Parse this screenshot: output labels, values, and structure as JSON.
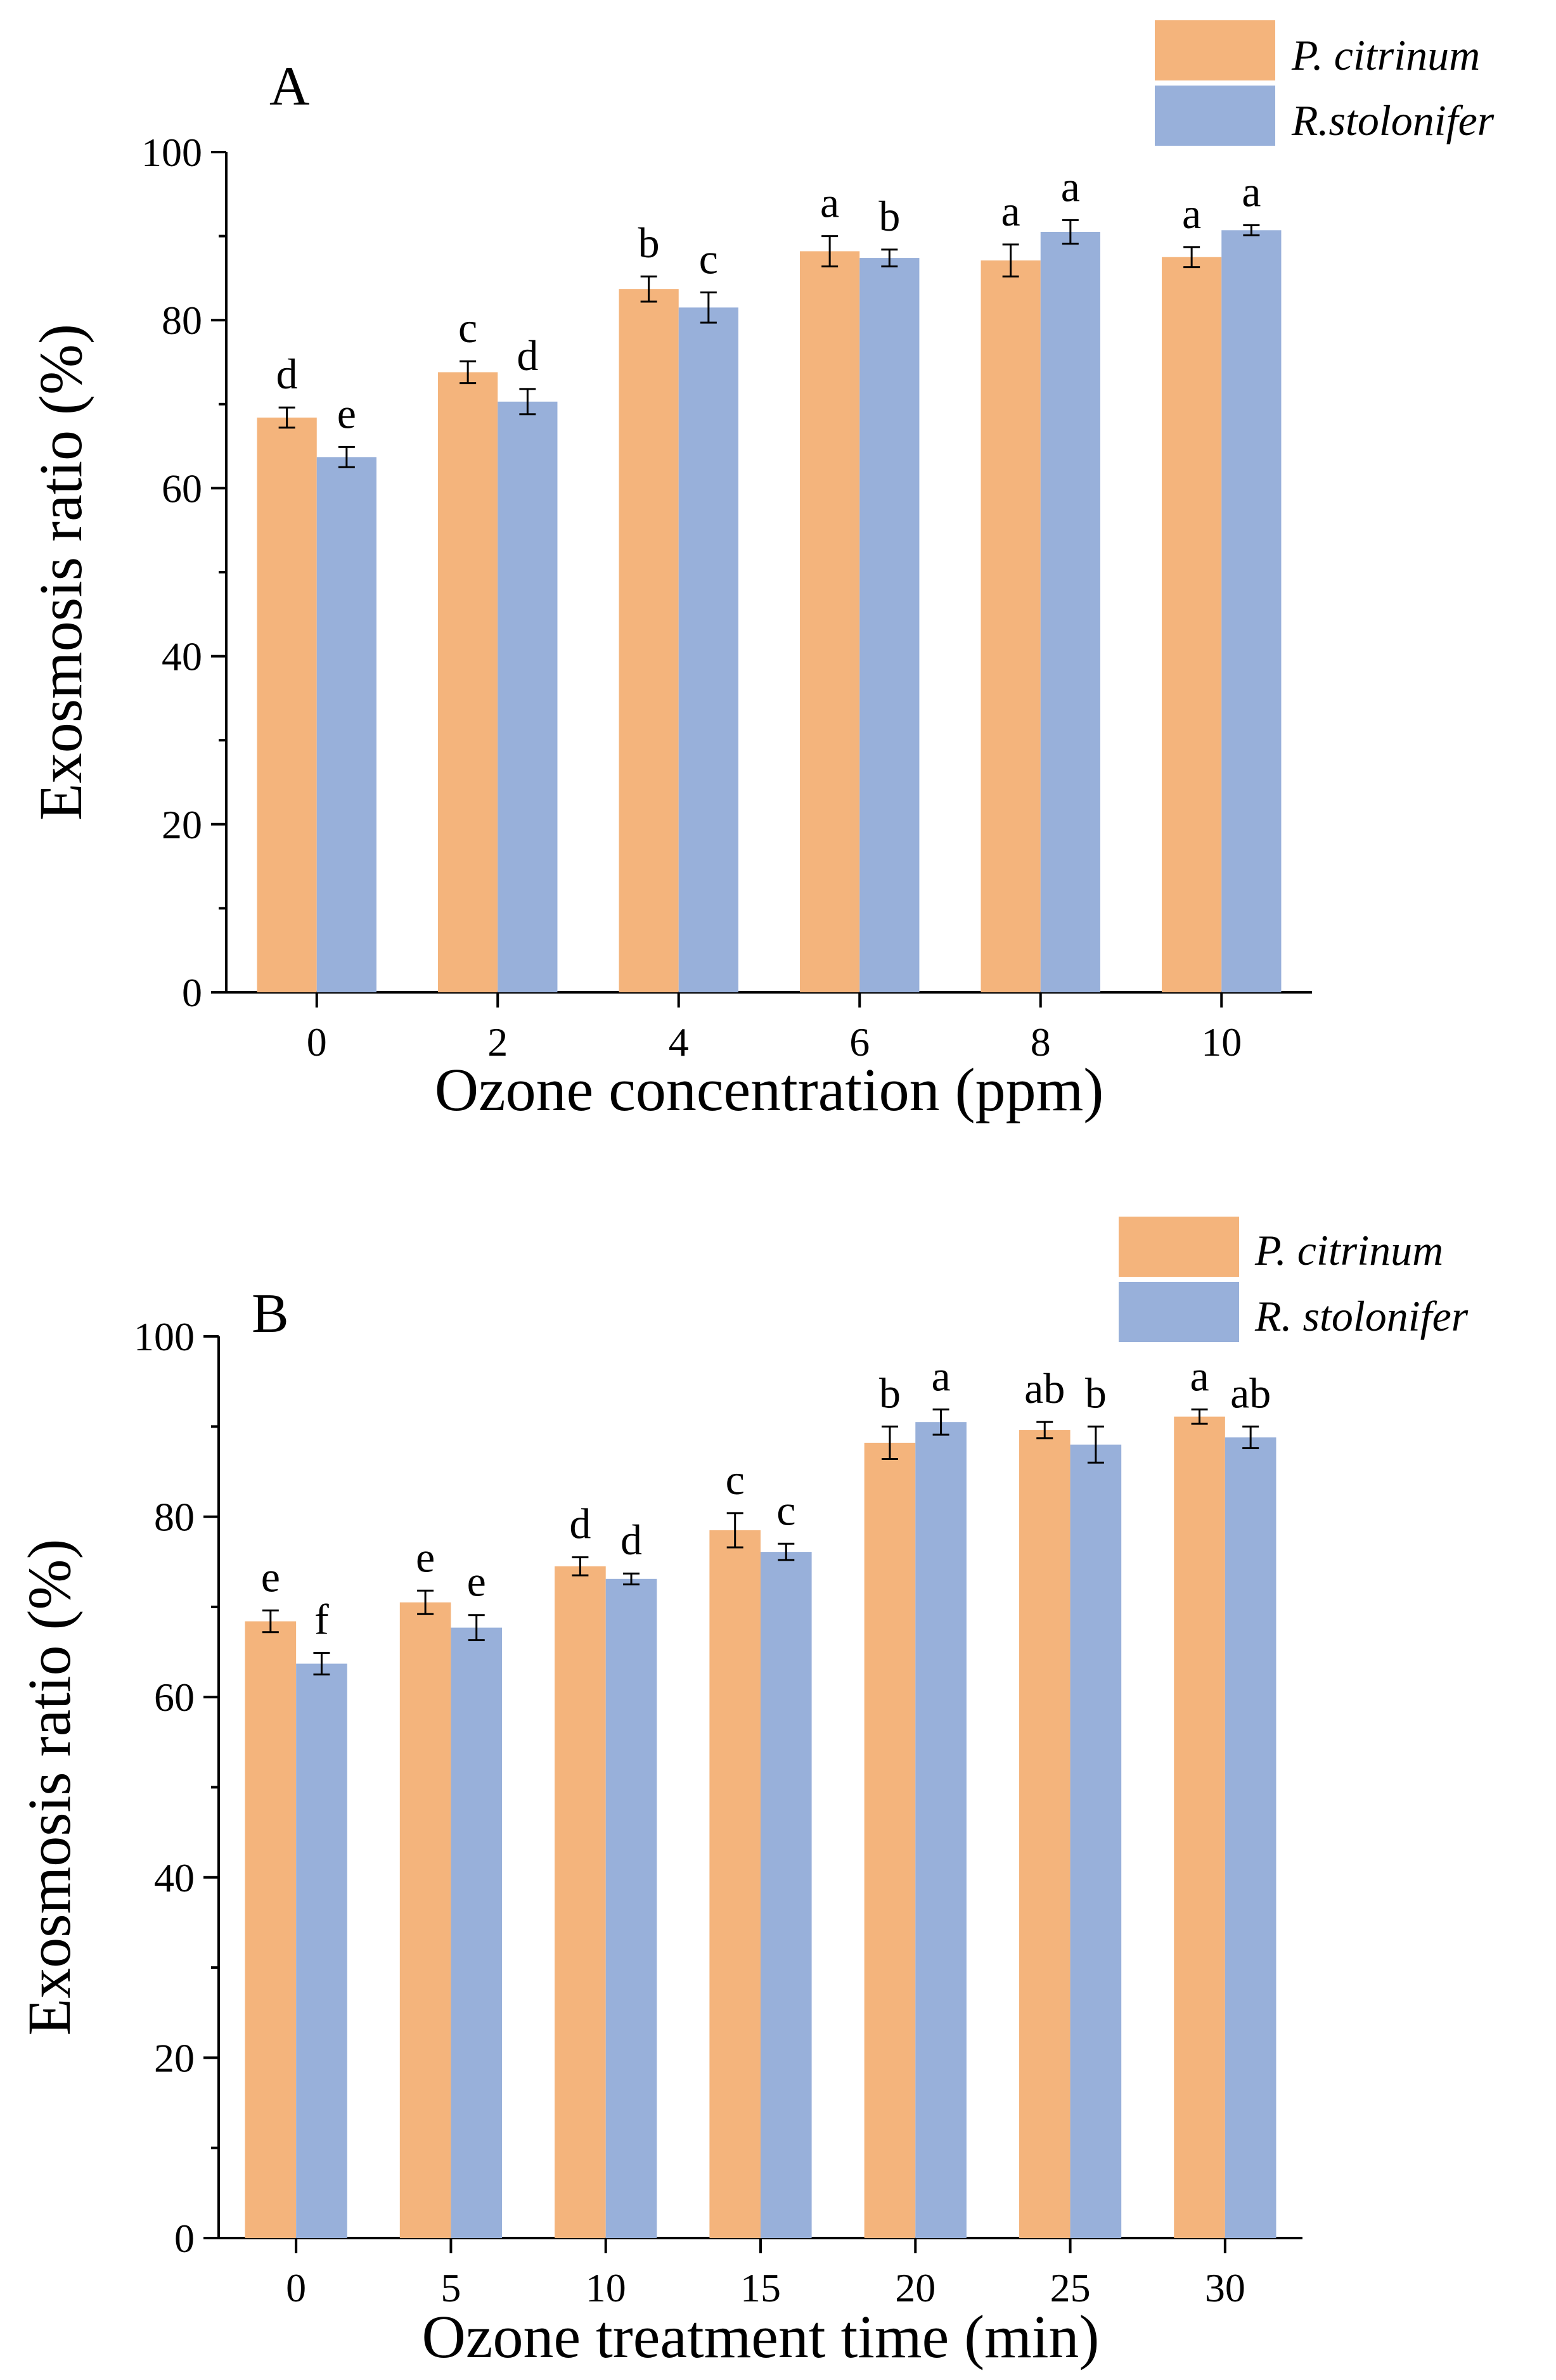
{
  "chart_data": [
    {
      "type": "bar",
      "panel": "A",
      "title": "",
      "xlabel": "Ozone concentration (ppm)",
      "ylabel": "Exosmosis ratio (%)",
      "ylim": [
        0,
        100
      ],
      "yticks": [
        "0",
        "20",
        "40",
        "60",
        "80",
        "100"
      ],
      "categories": [
        "0",
        "2",
        "4",
        "6",
        "8",
        "10"
      ],
      "legend_position": "top-right",
      "series": [
        {
          "name": "P. citrinum",
          "color": "#F4B47C",
          "values": [
            68.4,
            73.8,
            83.7,
            88.2,
            87.1,
            87.5
          ],
          "errors": [
            1.2,
            1.3,
            1.5,
            1.8,
            1.9,
            1.2
          ],
          "labels": [
            "d",
            "c",
            "b",
            "a",
            "a",
            "a"
          ]
        },
        {
          "name": "R.stolonifer",
          "color": "#98B0DA",
          "values": [
            63.7,
            70.3,
            81.5,
            87.4,
            90.5,
            90.7
          ],
          "errors": [
            1.2,
            1.5,
            1.8,
            1.0,
            1.4,
            0.6
          ],
          "labels": [
            "e",
            "d",
            "c",
            "b",
            "a",
            "a"
          ]
        }
      ]
    },
    {
      "type": "bar",
      "panel": "B",
      "title": "",
      "xlabel": "Ozone treatment time (min)",
      "ylabel": "Exosmosis ratio (%)",
      "ylim": [
        0,
        100
      ],
      "yticks": [
        "0",
        "20",
        "40",
        "60",
        "80",
        "100"
      ],
      "categories": [
        "0",
        "5",
        "10",
        "15",
        "20",
        "25",
        "30"
      ],
      "legend_position": "top-right",
      "series": [
        {
          "name": "P. citrinum",
          "color": "#F4B47C",
          "values": [
            68.4,
            70.5,
            74.5,
            78.5,
            88.2,
            89.6,
            91.1
          ],
          "errors": [
            1.2,
            1.3,
            1.0,
            1.9,
            1.8,
            0.9,
            0.8
          ],
          "labels": [
            "e",
            "e",
            "d",
            "c",
            "b",
            "ab",
            "a"
          ]
        },
        {
          "name": "R. stolonifer",
          "color": "#98B0DA",
          "values": [
            63.7,
            67.7,
            73.1,
            76.1,
            90.5,
            88.0,
            88.8
          ],
          "errors": [
            1.2,
            1.4,
            0.6,
            0.9,
            1.4,
            2.0,
            1.2
          ],
          "labels": [
            "f",
            "e",
            "d",
            "c",
            "a",
            "b",
            "ab"
          ]
        }
      ]
    }
  ]
}
